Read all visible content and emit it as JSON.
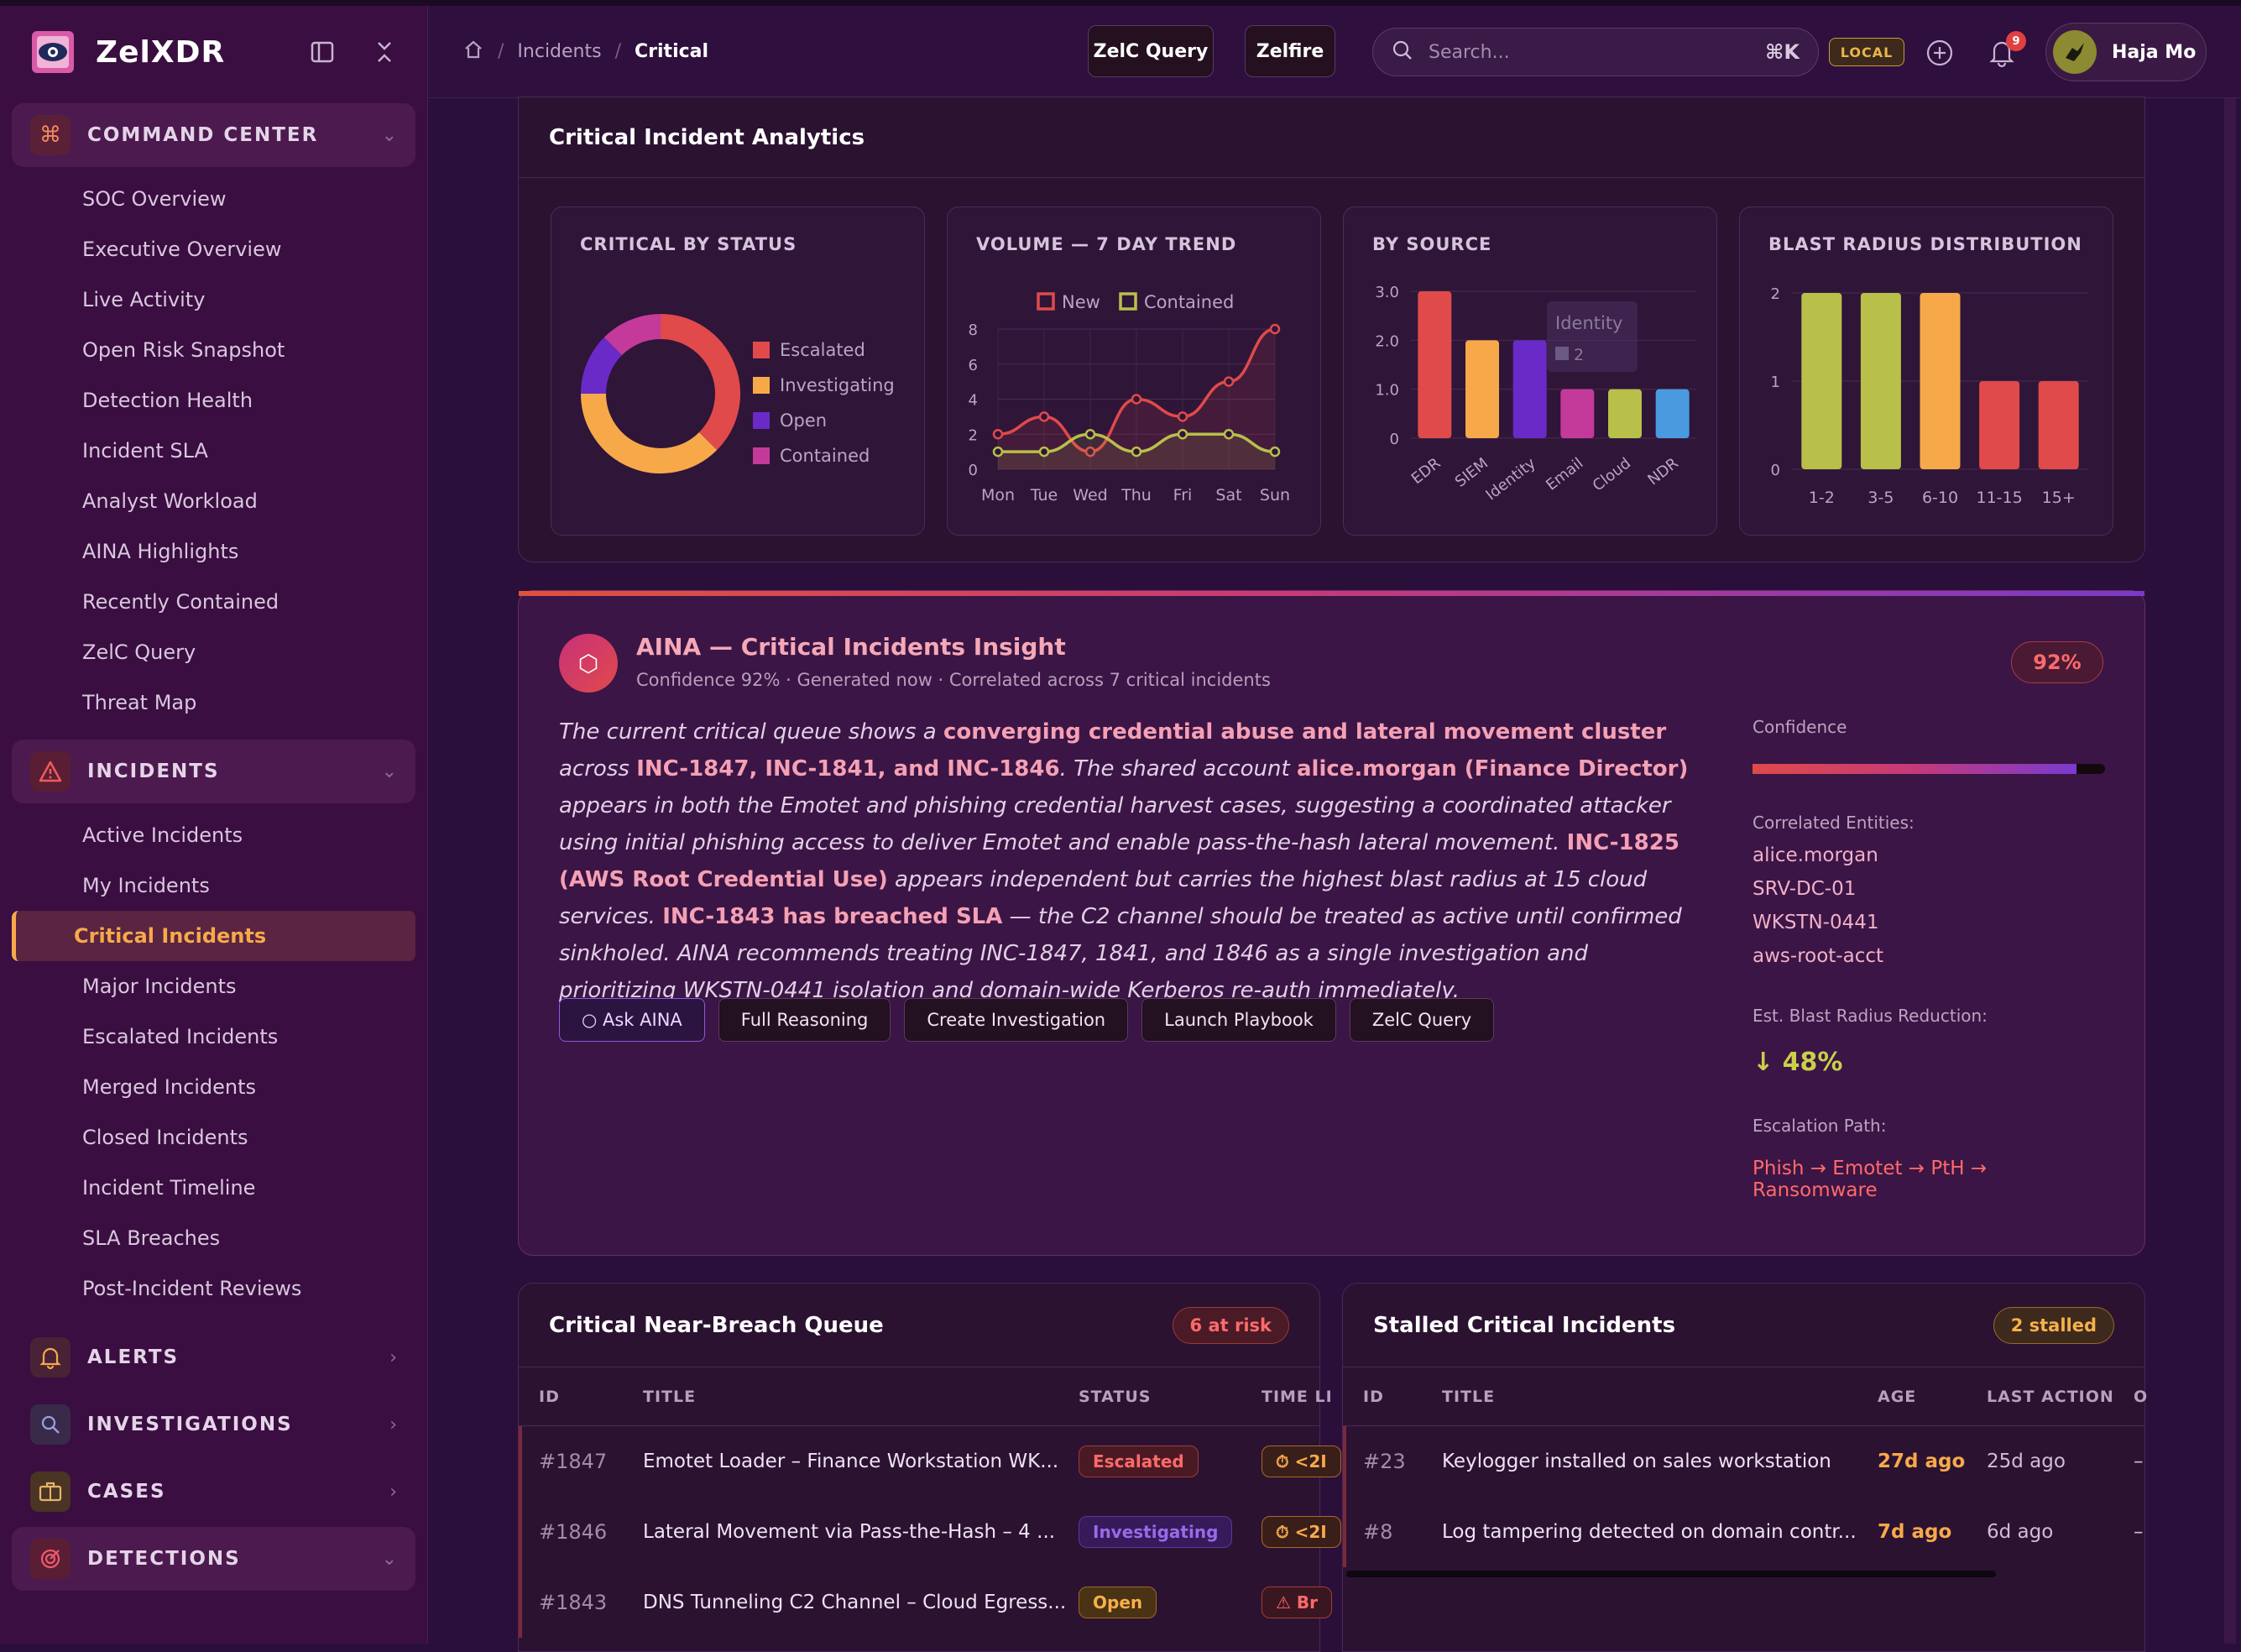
{
  "app": {
    "name": "ZelXDR"
  },
  "sidebar": {
    "sections": [
      {
        "label": "COMMAND CENTER",
        "icon": "command-icon",
        "open": true,
        "items": [
          "SOC Overview",
          "Executive Overview",
          "Live Activity",
          "Open Risk Snapshot",
          "Detection Health",
          "Incident SLA",
          "Analyst Workload",
          "AINA Highlights",
          "Recently Contained",
          "ZelC Query",
          "Threat Map"
        ]
      },
      {
        "label": "INCIDENTS",
        "icon": "warning-icon",
        "open": true,
        "items": [
          "Active Incidents",
          "My Incidents",
          "Critical Incidents",
          "Major Incidents",
          "Escalated Incidents",
          "Merged Incidents",
          "Closed Incidents",
          "Incident Timeline",
          "SLA Breaches",
          "Post-Incident Reviews"
        ]
      },
      {
        "label": "ALERTS",
        "icon": "bell-icon",
        "open": false
      },
      {
        "label": "INVESTIGATIONS",
        "icon": "magnifier-icon",
        "open": false
      },
      {
        "label": "CASES",
        "icon": "briefcase-icon",
        "open": false
      },
      {
        "label": "DETECTIONS",
        "icon": "target-icon",
        "open": true
      }
    ],
    "active_item": "Critical Incidents"
  },
  "header": {
    "breadcrumb": [
      "Incidents",
      "Critical"
    ],
    "btn_query": "ZelC Query",
    "btn_zelfire": "Zelfire",
    "search_placeholder": "Search...",
    "search_shortcut": "⌘K",
    "env_badge": "LOCAL",
    "notifications": "9",
    "user_name": "Haja Mo"
  },
  "analytics": {
    "title": "Critical Incident Analytics",
    "status_title": "CRITICAL BY STATUS",
    "trend_title": "VOLUME — 7 DAY TREND",
    "source_title": "BY SOURCE",
    "blast_title": "BLAST RADIUS DISTRIBUTION",
    "tooltip_label": "Identity",
    "tooltip_value": "2"
  },
  "chart_data": [
    {
      "type": "pie",
      "title": "CRITICAL BY STATUS",
      "labels": [
        "Escalated",
        "Investigating",
        "Open",
        "Contained"
      ],
      "values": [
        3,
        3,
        1,
        1
      ],
      "colors": [
        "#e04a4a",
        "#f7a94a",
        "#6a2ac8",
        "#c43a9a"
      ],
      "legend": "right"
    },
    {
      "type": "line",
      "title": "VOLUME — 7 DAY TREND",
      "categories": [
        "Mon",
        "Tue",
        "Wed",
        "Thu",
        "Fri",
        "Sat",
        "Sun"
      ],
      "series": [
        {
          "name": "New",
          "values": [
            2,
            3,
            1,
            4,
            3,
            5,
            8
          ],
          "color": "#e04a4a"
        },
        {
          "name": "Contained",
          "values": [
            1,
            1,
            2,
            1,
            2,
            2,
            1
          ],
          "color": "#b8c04a"
        }
      ],
      "yticks": [
        0,
        2,
        4,
        6,
        8
      ],
      "ylim": [
        0,
        8
      ],
      "legend": "top",
      "grid": true
    },
    {
      "type": "bar",
      "title": "BY SOURCE",
      "categories": [
        "EDR",
        "SIEM",
        "Identity",
        "Email",
        "Cloud",
        "NDR"
      ],
      "values": [
        3,
        2,
        2,
        1,
        1,
        1
      ],
      "colors": [
        "#e04a4a",
        "#f7a94a",
        "#6a2ac8",
        "#c43a9a",
        "#b8c04a",
        "#4a9ae0"
      ],
      "yticks": [
        "0",
        "1.0",
        "2.0",
        "3.0"
      ],
      "ylim": [
        0,
        3
      ],
      "grid": true
    },
    {
      "type": "bar",
      "title": "BLAST RADIUS DISTRIBUTION",
      "categories": [
        "1-2",
        "3-5",
        "6-10",
        "11-15",
        "15+"
      ],
      "values": [
        2,
        2,
        2,
        1,
        1
      ],
      "colors": [
        "#b8c04a",
        "#b8c04a",
        "#f7a94a",
        "#e04a4a",
        "#e04a4a"
      ],
      "yticks": [
        "0",
        "1",
        "2"
      ],
      "ylim": [
        0,
        2
      ],
      "grid": true
    }
  ],
  "insight": {
    "title": "AINA — Critical Incidents Insight",
    "subtitle": "Confidence 92% · Generated now · Correlated across 7 critical incidents",
    "pct": "92%",
    "body": [
      {
        "t": "The current critical queue shows a "
      },
      {
        "t": "converging credential abuse and lateral movement cluster",
        "hl": true
      },
      {
        "t": " across "
      },
      {
        "t": "INC-1847, INC-1841, and INC-1846",
        "hl": true
      },
      {
        "t": ". The shared account "
      },
      {
        "t": "alice.morgan (Finance Director)",
        "hl": true
      },
      {
        "t": " appears in both the Emotet and phishing credential harvest cases, suggesting a coordinated attacker using initial phishing access to deliver Emotet and enable pass-the-hash lateral movement. "
      },
      {
        "t": "INC-1825 (AWS Root Credential Use)",
        "hl": true
      },
      {
        "t": " appears independent but carries the highest blast radius at 15 cloud services. "
      },
      {
        "t": "INC-1843 has breached SLA",
        "hl": true
      },
      {
        "t": " — the C2 channel should be treated as active until confirmed sinkholed. AINA recommends treating INC-1847, 1841, and 1846 as a single investigation and prioritizing WKSTN-0441 isolation and domain-wide Kerberos re-auth immediately."
      }
    ],
    "actions": [
      "○ Ask AINA",
      "Full Reasoning",
      "Create Investigation",
      "Launch Playbook",
      "ZelC Query"
    ],
    "confidence_label": "Confidence",
    "confidence_value": 0.92,
    "entities_label": "Correlated Entities:",
    "entities": [
      "alice.morgan",
      "SRV-DC-01",
      "WKSTN-0441",
      "aws-root-acct"
    ],
    "reduction_label": "Est. Blast Radius Reduction:",
    "reduction_value": "↓ 48%",
    "path_label": "Escalation Path:",
    "path_value": "Phish → Emotet → PtH → Ransomware"
  },
  "near_breach": {
    "title": "Critical Near-Breach Queue",
    "badge": "6 at risk",
    "columns": [
      "ID",
      "TITLE",
      "STATUS",
      "TIME LI"
    ],
    "rows": [
      {
        "id": "#1847",
        "title": "Emotet Loader – Finance Workstation WK...",
        "status": "Escalated",
        "st": "esc",
        "time": "⏱ <2I",
        "tt": "tl"
      },
      {
        "id": "#1846",
        "title": "Lateral Movement via Pass-the-Hash – 4 ...",
        "status": "Investigating",
        "st": "inv",
        "time": "⏱ <2I",
        "tt": "tl"
      },
      {
        "id": "#1843",
        "title": "DNS Tunneling C2 Channel – Cloud Egress...",
        "status": "Open",
        "st": "open",
        "time": "⚠ Br",
        "tt": "br"
      }
    ]
  },
  "stalled": {
    "title": "Stalled Critical Incidents",
    "badge": "2 stalled",
    "columns": [
      "ID",
      "TITLE",
      "AGE",
      "LAST ACTION",
      "O"
    ],
    "rows": [
      {
        "id": "#23",
        "title": "Keylogger installed on sales workstation",
        "age": "27d ago",
        "last": "25d ago",
        "o": "–"
      },
      {
        "id": "#8",
        "title": "Log tampering detected on domain contr...",
        "age": "7d ago",
        "last": "6d ago",
        "o": "–"
      }
    ]
  }
}
